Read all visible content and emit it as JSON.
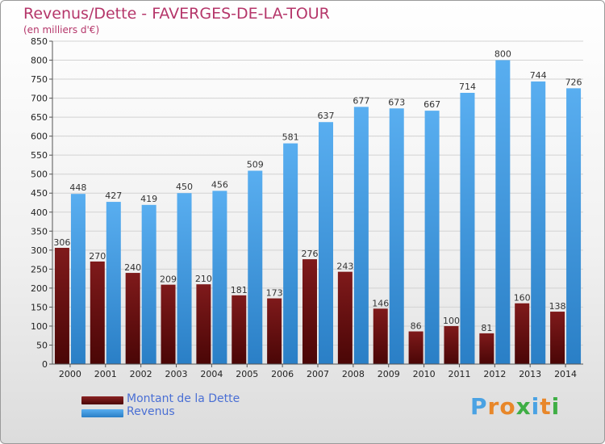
{
  "title": "Revenus/Dette - FAVERGES-DE-LA-TOUR",
  "subtitle": "(en milliers d'€)",
  "logo": {
    "text": "Proxiti",
    "letters": [
      {
        "ch": "P",
        "color": "#4aa2e3"
      },
      {
        "ch": "r",
        "color": "#e8872a"
      },
      {
        "ch": "o",
        "color": "#e8872a"
      },
      {
        "ch": "x",
        "color": "#3fae45"
      },
      {
        "ch": "i",
        "color": "#4aa2e3"
      },
      {
        "ch": "t",
        "color": "#e8872a"
      },
      {
        "ch": "i",
        "color": "#3fae45"
      }
    ]
  },
  "colors": {
    "dette": "#7a1516",
    "revenus": "#3b97dd",
    "axis_text": "#222222",
    "grid": "#d2d2d2",
    "accent_title": "#b5366a"
  },
  "chart_data": {
    "type": "bar",
    "title": "Revenus/Dette - FAVERGES-DE-LA-TOUR",
    "ylabel": "(en milliers d'€)",
    "categories": [
      "2000",
      "2001",
      "2002",
      "2003",
      "2004",
      "2005",
      "2006",
      "2007",
      "2008",
      "2009",
      "2010",
      "2011",
      "2012",
      "2013",
      "2014"
    ],
    "series": [
      {
        "name": "Montant de la Dette",
        "values": [
          306,
          270,
          240,
          209,
          210,
          181,
          173,
          276,
          243,
          146,
          86,
          100,
          81,
          160,
          138
        ]
      },
      {
        "name": "Revenus",
        "values": [
          448,
          427,
          419,
          450,
          456,
          509,
          581,
          637,
          677,
          673,
          667,
          714,
          800,
          744,
          726
        ]
      }
    ],
    "ylim": [
      0,
      850
    ],
    "yticks": [
      0,
      50,
      100,
      150,
      200,
      250,
      300,
      350,
      400,
      450,
      500,
      550,
      600,
      650,
      700,
      750,
      800,
      850
    ],
    "grid": true,
    "legend": "bottom-left"
  }
}
